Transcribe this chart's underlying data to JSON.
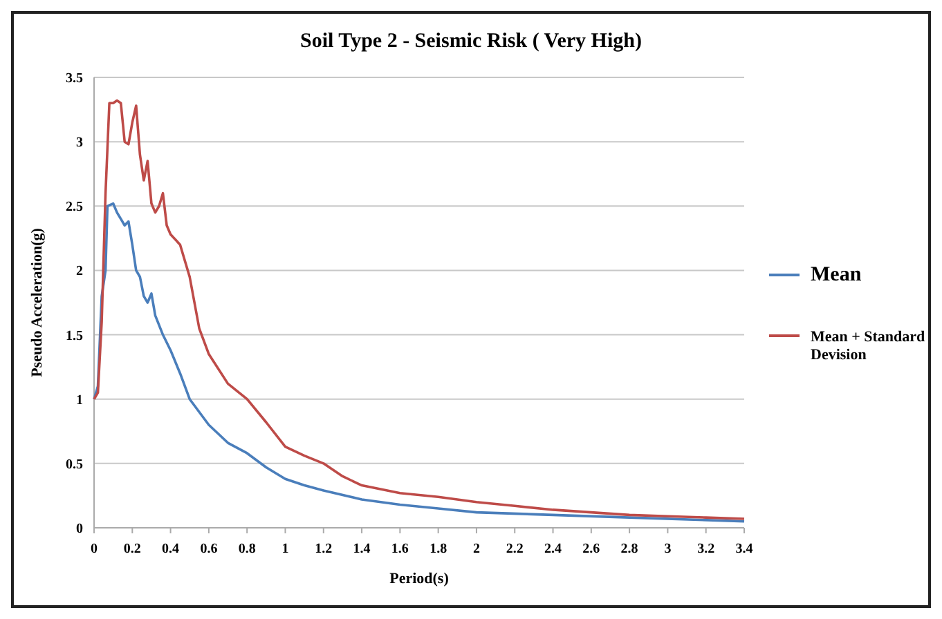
{
  "chart_data": {
    "type": "line",
    "title": "Soil Type 2 - Seismic Risk ( Very High)",
    "xlabel": "Period(s)",
    "ylabel": "Pseudo Acceleration(g)",
    "xlim": [
      0,
      3.4
    ],
    "xticks": [
      0,
      0.2,
      0.4,
      0.6,
      0.8,
      1,
      1.2,
      1.4,
      1.6,
      1.8,
      2,
      2.2,
      2.4,
      2.6,
      2.8,
      3,
      3.2,
      3.4
    ],
    "ylim": [
      0,
      3.5
    ],
    "yticks": [
      0,
      0.5,
      1,
      1.5,
      2,
      2.5,
      3,
      3.5
    ],
    "grid": "y",
    "legend": "right",
    "line_style": "solid",
    "marker": "none",
    "series": [
      {
        "name": "Mean",
        "color": "#4a7ebb",
        "x": [
          0,
          0.02,
          0.04,
          0.06,
          0.07,
          0.1,
          0.12,
          0.14,
          0.16,
          0.18,
          0.2,
          0.22,
          0.24,
          0.26,
          0.28,
          0.3,
          0.32,
          0.36,
          0.4,
          0.45,
          0.5,
          0.6,
          0.7,
          0.8,
          0.9,
          1,
          1.1,
          1.2,
          1.4,
          1.6,
          1.8,
          2,
          2.4,
          2.8,
          3.4
        ],
        "values": [
          1,
          1.1,
          1.8,
          2,
          2.5,
          2.52,
          2.45,
          2.4,
          2.35,
          2.38,
          2.2,
          2,
          1.95,
          1.8,
          1.75,
          1.82,
          1.65,
          1.5,
          1.38,
          1.2,
          1,
          0.8,
          0.66,
          0.58,
          0.47,
          0.38,
          0.33,
          0.29,
          0.22,
          0.18,
          0.15,
          0.12,
          0.1,
          0.08,
          0.05
        ]
      },
      {
        "name": "Mean + Standard Devision",
        "color": "#be4b48",
        "x": [
          0,
          0.02,
          0.04,
          0.06,
          0.08,
          0.1,
          0.12,
          0.14,
          0.16,
          0.18,
          0.2,
          0.22,
          0.24,
          0.26,
          0.28,
          0.3,
          0.32,
          0.34,
          0.36,
          0.38,
          0.4,
          0.45,
          0.5,
          0.55,
          0.6,
          0.7,
          0.8,
          0.9,
          1,
          1.1,
          1.2,
          1.3,
          1.4,
          1.6,
          1.8,
          2,
          2.2,
          2.4,
          2.6,
          2.8,
          3,
          3.2,
          3.4
        ],
        "values": [
          1,
          1.05,
          1.6,
          2.6,
          3.3,
          3.3,
          3.32,
          3.3,
          3,
          2.98,
          3.15,
          3.28,
          2.9,
          2.7,
          2.85,
          2.52,
          2.45,
          2.5,
          2.6,
          2.35,
          2.28,
          2.2,
          1.95,
          1.55,
          1.35,
          1.12,
          1,
          0.82,
          0.63,
          0.56,
          0.5,
          0.4,
          0.33,
          0.27,
          0.24,
          0.2,
          0.17,
          0.14,
          0.12,
          0.1,
          0.09,
          0.08,
          0.07
        ]
      }
    ]
  }
}
